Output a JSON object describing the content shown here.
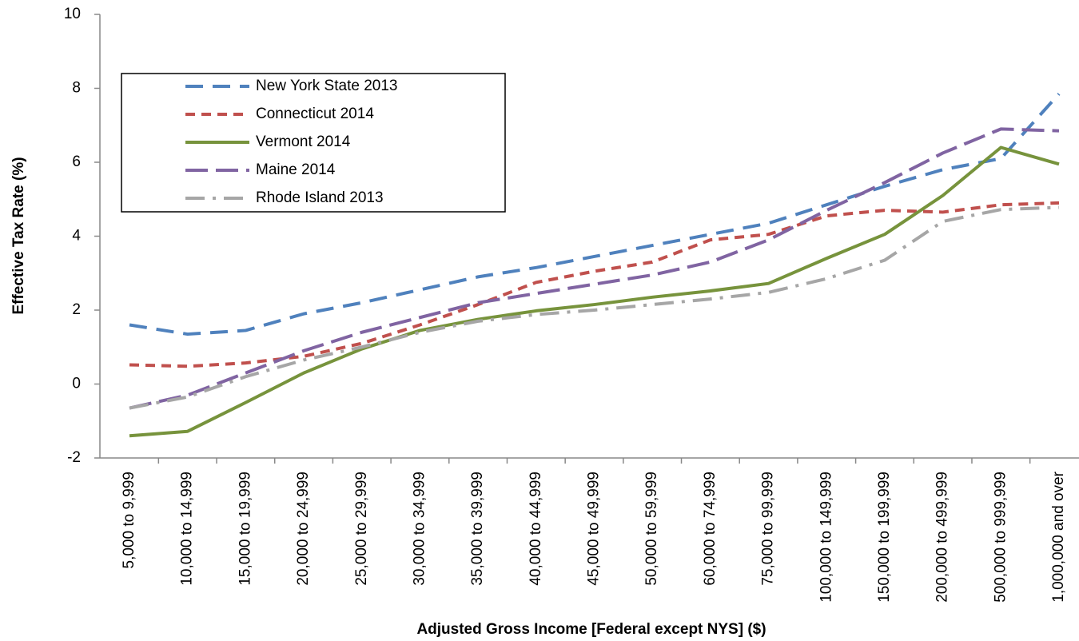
{
  "chart_data": {
    "type": "line",
    "x_label": "Adjusted Gross Income [Federal except NYS] ($)",
    "y_label": "Effective Tax Rate (%)",
    "categories": [
      "5,000 to 9,999",
      "10,000 to 14,999",
      "15,000 to 19,999",
      "20,000 to 24,999",
      "25,000 to 29,999",
      "30,000 to 34,999",
      "35,000 to 39,999",
      "40,000 to 44,999",
      "45,000 to 49,999",
      "50,000 to 59,999",
      "60,000 to 74,999",
      "75,000 to 99,999",
      "100,000 to 149,999",
      "150,000 to 199,999",
      "200,000 to 499,999",
      "500,000 to 999,999",
      "1,000,000 and over"
    ],
    "series": [
      {
        "name": "New York State 2013",
        "color": "#4f81bd",
        "dash": "long-dash",
        "values": [
          1.6,
          1.35,
          1.45,
          1.9,
          2.2,
          2.55,
          2.9,
          3.15,
          3.45,
          3.75,
          4.05,
          4.35,
          4.85,
          5.35,
          5.8,
          6.1,
          7.85
        ]
      },
      {
        "name": "Connecticut 2014",
        "color": "#c0504d",
        "dash": "short-dash",
        "values": [
          0.52,
          0.48,
          0.57,
          0.75,
          1.1,
          1.6,
          2.15,
          2.75,
          3.05,
          3.3,
          3.9,
          4.05,
          4.55,
          4.7,
          4.65,
          4.85,
          4.9
        ]
      },
      {
        "name": "Vermont 2014",
        "color": "#77933c",
        "dash": "solid",
        "values": [
          -1.4,
          -1.28,
          -0.5,
          0.3,
          0.95,
          1.45,
          1.75,
          1.98,
          2.15,
          2.35,
          2.52,
          2.72,
          3.4,
          4.05,
          5.1,
          6.4,
          5.95
        ]
      },
      {
        "name": "Maine 2014",
        "color": "#8064a2",
        "dash": "long-dash-2",
        "values": [
          -0.65,
          -0.3,
          0.3,
          0.9,
          1.4,
          1.8,
          2.2,
          2.45,
          2.7,
          2.95,
          3.3,
          3.9,
          4.7,
          5.45,
          6.25,
          6.9,
          6.85
        ]
      },
      {
        "name": "Rhode Island 2013",
        "color": "#a6a6a6",
        "dash": "dash-dot",
        "values": [
          -0.65,
          -0.35,
          0.2,
          0.65,
          1.0,
          1.4,
          1.7,
          1.88,
          2.0,
          2.15,
          2.3,
          2.48,
          2.85,
          3.35,
          4.4,
          4.72,
          4.78
        ]
      }
    ],
    "ylim": [
      -2,
      10
    ],
    "yticks": [
      -2,
      0,
      2,
      4,
      6,
      8,
      10
    ],
    "grid": false,
    "legend": "upper left"
  }
}
